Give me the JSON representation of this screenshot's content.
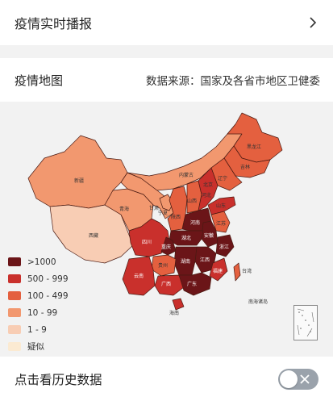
{
  "realtime": {
    "title": "疫情实时播报"
  },
  "map": {
    "title": "疫情地图",
    "source": "数据来源：国家及各省市地区卫健委",
    "colors": {
      "gt1000": "#6b1518",
      "r500": "#c9302c",
      "r100": "#e4603f",
      "r10": "#f2986f",
      "r1": "#f8cdb4",
      "suspect": "#fbead2"
    },
    "legend": [
      {
        "label": ">1000",
        "color": "#6b1518"
      },
      {
        "label": "500 - 999",
        "color": "#c9302c"
      },
      {
        "label": "100 - 499",
        "color": "#e4603f"
      },
      {
        "label": "10 - 99",
        "color": "#f2986f"
      },
      {
        "label": "1 - 9",
        "color": "#f8cdb4"
      },
      {
        "label": "疑似",
        "color": "#fbead2"
      }
    ],
    "provinces": {
      "heilongjiang": "黑龙江",
      "jilin": "吉林",
      "liaoning": "辽宁",
      "neimenggu": "内蒙古",
      "xinjiang": "新疆",
      "xizang": "西藏",
      "qinghai": "青海",
      "gansu": "甘肃",
      "ningxia": "宁夏",
      "shaanxi": "陕西",
      "shanxi": "山西",
      "hebei": "河北",
      "beijing": "北京",
      "shandong": "山东",
      "henan": "河南",
      "hubei": "湖北",
      "sichuan": "四川",
      "chongqing": "重庆",
      "guizhou": "贵州",
      "yunnan": "云南",
      "hunan": "湖南",
      "jiangxi": "江西",
      "anhui": "安徽",
      "jiangsu": "江苏",
      "zhejiang": "浙江",
      "fujian": "福建",
      "guangdong": "广东",
      "guangxi": "广西",
      "hainan": "海南",
      "taiwan": "台湾",
      "south_sea": "南海诸岛"
    }
  },
  "history": {
    "title": "点击看历史数据"
  }
}
